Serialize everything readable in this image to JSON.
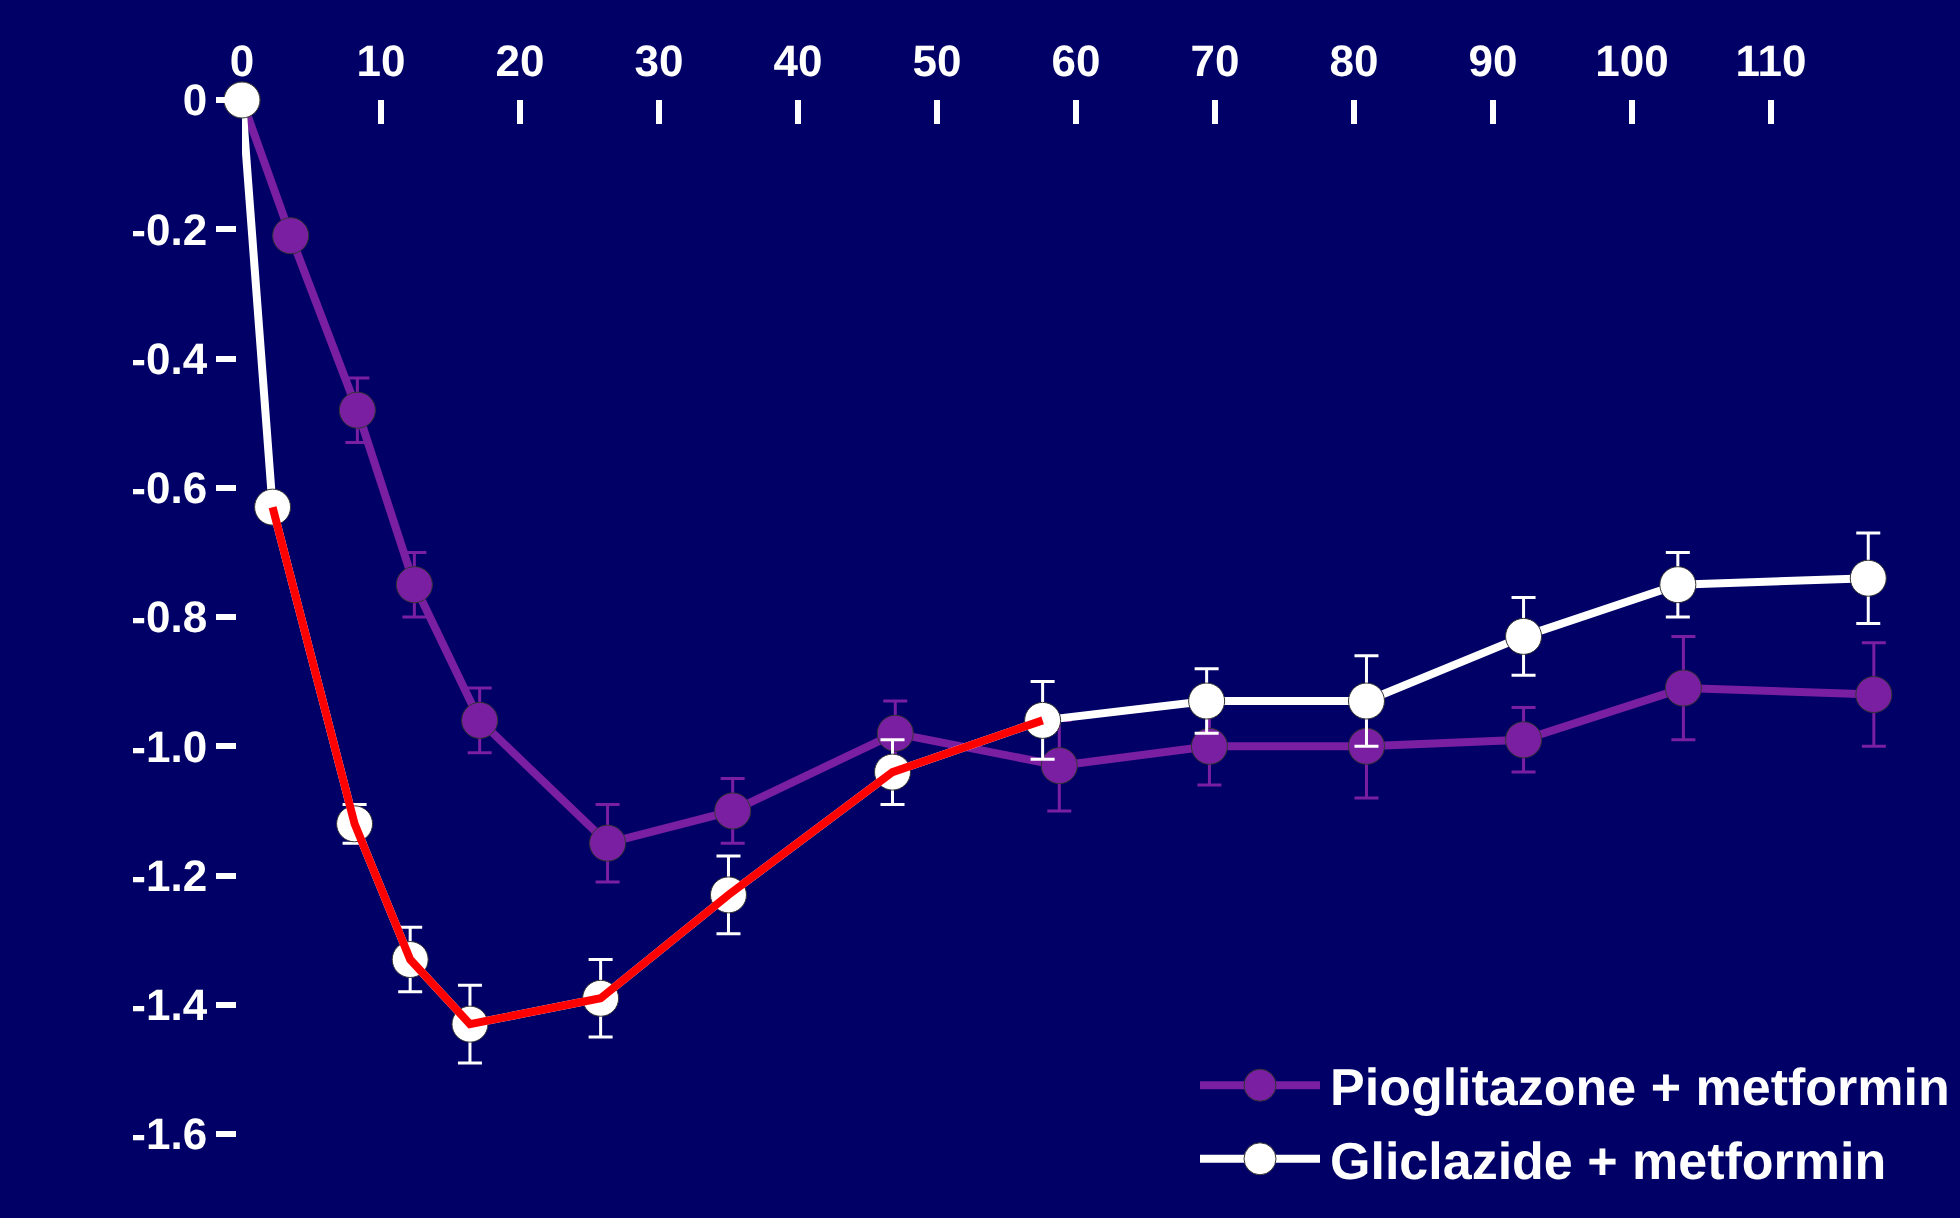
{
  "chart_data": {
    "type": "line",
    "xlim": [
      0,
      123.6
    ],
    "xticks": [
      0,
      10,
      20,
      30,
      40,
      50,
      60,
      70,
      80,
      90,
      100,
      110
    ],
    "ylim": [
      -1.6,
      0
    ],
    "yticks": [
      0,
      -0.2,
      -0.4,
      -0.6,
      -0.8,
      {
        "value": -1.0,
        "label": "-1.0"
      },
      -1.2,
      -1.4,
      -1.6
    ],
    "grid": false,
    "legend": "bottom right",
    "marker": "circle",
    "line_style": "solid",
    "series": [
      {
        "name": "Pioglitazone + metformin",
        "color": "#7a1fa2",
        "x": [
          0,
          3.5,
          8.3,
          12.4,
          17.1,
          26.3,
          35.3,
          47,
          58.8,
          69.6,
          80.9,
          92.2,
          103.7,
          117.4
        ],
        "values": [
          0,
          -0.21,
          -0.48,
          -0.75,
          -0.96,
          -1.15,
          -1.1,
          -0.98,
          -1.03,
          -1.0,
          -1.0,
          -0.99,
          -0.91,
          -0.92
        ],
        "errors": [
          null,
          null,
          0.05,
          0.05,
          0.05,
          0.06,
          0.05,
          0.05,
          0.07,
          0.06,
          0.08,
          0.05,
          0.08,
          0.08
        ]
      },
      {
        "color": "#ff0000",
        "marker": "none",
        "x": [
          2.2,
          8.1,
          12.1,
          16.4,
          25.8,
          35,
          46.8,
          57.6
        ],
        "values": [
          -0.63,
          -1.12,
          -1.33,
          -1.43,
          -1.39,
          -1.23,
          -1.04,
          -0.96
        ]
      },
      {
        "name": "Gliclazide + metformin",
        "color": "#ffffff",
        "x": [
          0,
          2.2,
          8.1,
          12.1,
          16.4,
          25.8,
          35,
          46.8,
          57.6,
          69.4,
          80.9,
          92.2,
          103.3,
          117
        ],
        "values": [
          0,
          -0.63,
          -1.12,
          -1.33,
          -1.43,
          -1.39,
          -1.23,
          -1.04,
          -0.96,
          -0.93,
          -0.93,
          -0.83,
          -0.75,
          -0.74
        ],
        "errors": [
          null,
          null,
          0.03,
          0.05,
          0.06,
          0.06,
          0.06,
          0.05,
          0.06,
          0.05,
          0.07,
          0.06,
          0.05,
          0.07
        ]
      }
    ]
  }
}
